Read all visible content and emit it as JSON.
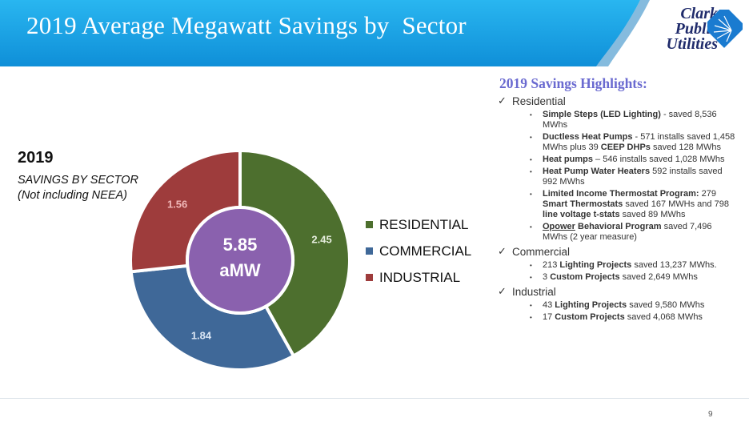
{
  "header": {
    "title": "2019 Average Megawatt Savings by  Sector",
    "logo_lines": [
      "Clark",
      "Public",
      "Utilities"
    ],
    "logo_icon": "light-burst-icon",
    "colors": {
      "banner": "#1aa3e8",
      "banner_dark": "#0e7cc4"
    }
  },
  "chart_caption": {
    "year": "2019",
    "line1": "SAVINGS BY SECTOR",
    "line2": "(Not including NEEA)"
  },
  "chart_data": {
    "type": "pie",
    "categories": [
      "RESIDENTIAL",
      "COMMERCIAL",
      "INDUSTRIAL"
    ],
    "values": [
      2.45,
      1.84,
      1.56
    ],
    "value_labels": [
      "2.45",
      "1.84",
      "1.56"
    ],
    "center_label": [
      "5.85",
      "aMW"
    ],
    "colors": [
      "#4d6f2e",
      "#3f6898",
      "#9e3c3c"
    ],
    "center_color": "#8a61ae",
    "legend_position": "right"
  },
  "highlights": {
    "title": "2019 Savings Highlights:",
    "sections": [
      {
        "name": "Residential",
        "items": [
          [
            {
              "b": "Simple Steps (LED Lighting)"
            },
            {
              "t": " - saved 8,536 MWhs"
            }
          ],
          [
            {
              "b": "Ductless Heat Pumps"
            },
            {
              "t": " - 571 installs saved 1,458 MWhs plus 39 "
            },
            {
              "b": "CEEP DHPs"
            },
            {
              "t": " saved 128 MWhs"
            }
          ],
          [
            {
              "b": "Heat pumps"
            },
            {
              "t": " – 546 installs saved 1,028 MWhs"
            }
          ],
          [
            {
              "b": "Heat Pump Water Heaters"
            },
            {
              "t": " 592 installs saved 992 MWhs"
            }
          ],
          [
            {
              "b": "Limited Income Thermostat Program:"
            },
            {
              "t": " 279 "
            },
            {
              "b": "Smart Thermostats"
            },
            {
              "t": " saved 167 MWHs and 798 "
            },
            {
              "b": "line voltage t-stats"
            },
            {
              "t": " saved 89 MWhs"
            }
          ],
          [
            {
              "bu": "Opower"
            },
            {
              "b": " Behavioral Program"
            },
            {
              "t": " saved 7,496 MWhs (2 year measure)"
            }
          ]
        ]
      },
      {
        "name": "Commercial",
        "items": [
          [
            {
              "t": "213 "
            },
            {
              "b": "Lighting Projects"
            },
            {
              "t": " saved 13,237 MWhs."
            }
          ],
          [
            {
              "t": "3 "
            },
            {
              "b": "Custom Projects"
            },
            {
              "t": " saved 2,649 MWhs"
            }
          ]
        ]
      },
      {
        "name": "Industrial",
        "items": [
          [
            {
              "t": "43 "
            },
            {
              "b": "Lighting Projects"
            },
            {
              "t": " saved 9,580 MWhs"
            }
          ],
          [
            {
              "t": "17 "
            },
            {
              "b": "Custom Projects"
            },
            {
              "t": " saved 4,068 MWhs"
            }
          ]
        ]
      }
    ]
  },
  "footer": {
    "page_number": "9"
  }
}
